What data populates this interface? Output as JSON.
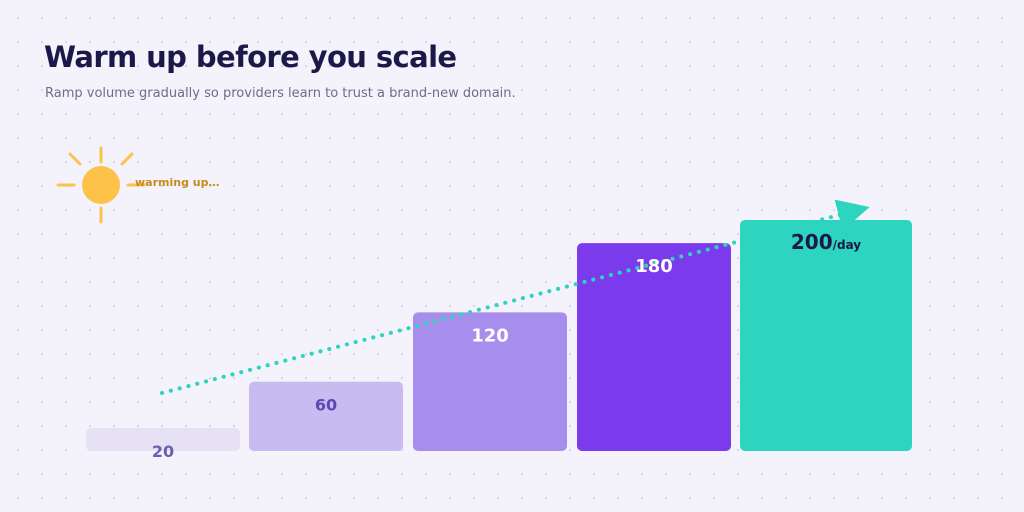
{
  "header": {
    "title": "Warm up before you scale",
    "subtitle": "Ramp volume gradually so providers learn to trust a brand-new domain."
  },
  "sun": {
    "icon": "sun-icon",
    "label": "warming up…",
    "color": "#fcc24a"
  },
  "chart_data": {
    "type": "bar",
    "values": [
      20,
      60,
      120,
      180,
      200
    ],
    "data_labels": [
      "20",
      "60",
      "120",
      "180",
      "200"
    ],
    "final_unit": "/day",
    "colors": [
      "#e6e2f4",
      "#c8bbf0",
      "#a88eec",
      "#7c3aed",
      "#2dd4bf"
    ],
    "label_colors": [
      "#6b5fb0",
      "#5b48b8",
      "#ffffff",
      "#ffffff",
      "#1c1848"
    ],
    "trend_color": "#2dd4bf",
    "ylim": [
      0,
      200
    ],
    "grid": false,
    "legend": "none",
    "title": "",
    "xlabel": "",
    "ylabel": ""
  }
}
